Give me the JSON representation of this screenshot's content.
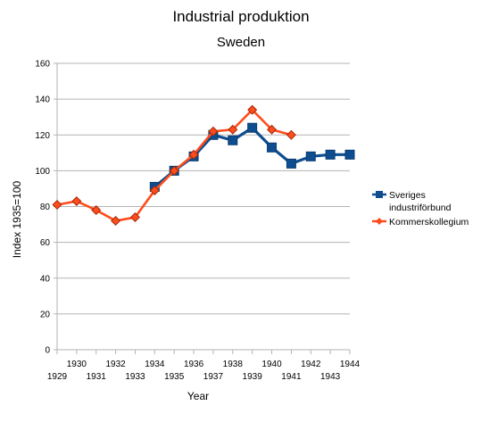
{
  "chart_data": {
    "type": "line",
    "title": "Industrial produktion",
    "subtitle": "Sweden",
    "xlabel": "Year",
    "ylabel": "Index 1935=100",
    "ylim": [
      0,
      160
    ],
    "xlim": [
      1929,
      1944
    ],
    "y_ticks": [
      "0",
      "20",
      "40",
      "60",
      "80",
      "100",
      "120",
      "140",
      "160"
    ],
    "x_ticks": [
      "1929",
      "1930",
      "1931",
      "1932",
      "1933",
      "1934",
      "1935",
      "1936",
      "1937",
      "1938",
      "1939",
      "1940",
      "1941",
      "1942",
      "1943",
      "1944"
    ],
    "grid": "horizontal",
    "legend_position": "right",
    "series": [
      {
        "name": "Sveriges industriförbund",
        "legend_lines": [
          "Sveriges",
          "industriförbund"
        ],
        "color": "#0e4d8f",
        "marker": "square",
        "x": [
          1934,
          1935,
          1936,
          1937,
          1938,
          1939,
          1940,
          1941,
          1942,
          1943,
          1944
        ],
        "values": [
          91,
          100,
          108,
          120,
          117,
          124,
          113,
          104,
          108,
          109,
          109
        ]
      },
      {
        "name": "Kommerskollegium",
        "legend_lines": [
          "Kommerskollegium"
        ],
        "color": "#ff4c1c",
        "marker": "diamond",
        "x": [
          1929,
          1930,
          1931,
          1932,
          1933,
          1934,
          1935,
          1936,
          1937,
          1938,
          1939,
          1940,
          1941
        ],
        "values": [
          81,
          83,
          78,
          72,
          74,
          89,
          100,
          109,
          122,
          123,
          134,
          123,
          120
        ]
      }
    ]
  }
}
